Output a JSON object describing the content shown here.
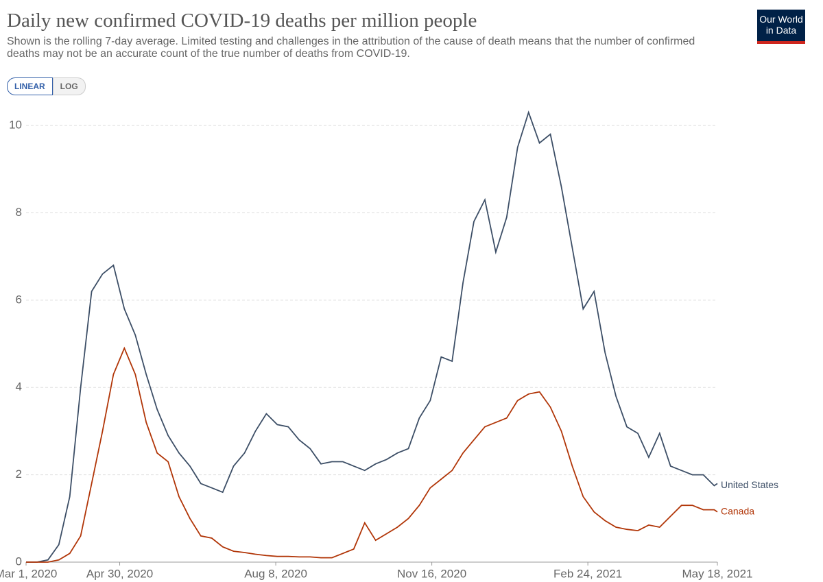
{
  "chart_data": {
    "type": "line",
    "title": "Daily new confirmed COVID-19 deaths per million people",
    "subtitle": "Shown is the rolling 7-day average. Limited testing and challenges in the attribution of the cause of death means that the number of confirmed deaths may not be an accurate count of the true number of deaths from COVID-19.",
    "logo": [
      "Our World",
      "in Data"
    ],
    "scale_buttons": [
      "LINEAR",
      "LOG"
    ],
    "log_scale": false,
    "grid": true,
    "x": [
      "2020-03-01",
      "2020-03-08",
      "2020-03-15",
      "2020-03-22",
      "2020-03-29",
      "2020-04-05",
      "2020-04-12",
      "2020-04-19",
      "2020-04-26",
      "2020-05-03",
      "2020-05-10",
      "2020-05-17",
      "2020-05-24",
      "2020-05-31",
      "2020-06-07",
      "2020-06-14",
      "2020-06-21",
      "2020-06-28",
      "2020-07-05",
      "2020-07-12",
      "2020-07-19",
      "2020-07-26",
      "2020-08-02",
      "2020-08-09",
      "2020-08-16",
      "2020-08-23",
      "2020-08-30",
      "2020-09-06",
      "2020-09-13",
      "2020-09-20",
      "2020-09-27",
      "2020-10-04",
      "2020-10-11",
      "2020-10-18",
      "2020-10-25",
      "2020-11-01",
      "2020-11-08",
      "2020-11-15",
      "2020-11-22",
      "2020-11-29",
      "2020-12-06",
      "2020-12-13",
      "2020-12-20",
      "2020-12-27",
      "2021-01-03",
      "2021-01-10",
      "2021-01-17",
      "2021-01-24",
      "2021-01-31",
      "2021-02-07",
      "2021-02-14",
      "2021-02-21",
      "2021-02-28",
      "2021-03-07",
      "2021-03-14",
      "2021-03-21",
      "2021-03-28",
      "2021-04-04",
      "2021-04-11",
      "2021-04-18",
      "2021-04-25",
      "2021-05-02",
      "2021-05-09",
      "2021-05-16",
      "2021-05-18"
    ],
    "series": [
      {
        "name": "United States",
        "color": "#3c4e66",
        "values": [
          0,
          0,
          0.05,
          0.4,
          1.5,
          4.0,
          6.2,
          6.6,
          6.8,
          5.8,
          5.2,
          4.3,
          3.5,
          2.9,
          2.5,
          2.2,
          1.8,
          1.7,
          1.6,
          2.2,
          2.5,
          3.0,
          3.4,
          3.15,
          3.1,
          2.8,
          2.6,
          2.25,
          2.3,
          2.3,
          2.2,
          2.1,
          2.25,
          2.35,
          2.5,
          2.6,
          3.3,
          3.7,
          4.7,
          4.6,
          6.4,
          7.8,
          8.3,
          7.1,
          7.9,
          9.5,
          10.3,
          9.6,
          9.8,
          8.6,
          7.2,
          5.8,
          6.2,
          4.8,
          3.8,
          3.1,
          2.95,
          2.4,
          2.95,
          2.2,
          2.1,
          2.0,
          2.0,
          1.75,
          1.8
        ]
      },
      {
        "name": "Canada",
        "color": "#b13507",
        "values": [
          0,
          0,
          0,
          0.05,
          0.2,
          0.6,
          1.8,
          3.0,
          4.3,
          4.9,
          4.3,
          3.2,
          2.5,
          2.3,
          1.5,
          1.0,
          0.6,
          0.55,
          0.35,
          0.25,
          0.22,
          0.18,
          0.15,
          0.13,
          0.13,
          0.12,
          0.12,
          0.1,
          0.1,
          0.2,
          0.3,
          0.9,
          0.5,
          0.65,
          0.8,
          1.0,
          1.3,
          1.7,
          1.9,
          2.1,
          2.5,
          2.8,
          3.1,
          3.2,
          3.3,
          3.7,
          3.85,
          3.9,
          3.55,
          3.0,
          2.2,
          1.5,
          1.15,
          0.95,
          0.8,
          0.75,
          0.72,
          0.85,
          0.8,
          1.05,
          1.3,
          1.3,
          1.2,
          1.2,
          1.15
        ]
      }
    ],
    "xlim": [
      "2020-03-01",
      "2021-05-18"
    ],
    "xticks": [
      {
        "value": "2020-03-01",
        "label": "Mar 1, 2020"
      },
      {
        "value": "2020-04-30",
        "label": "Apr 30, 2020"
      },
      {
        "value": "2020-08-08",
        "label": "Aug 8, 2020"
      },
      {
        "value": "2020-11-16",
        "label": "Nov 16, 2020"
      },
      {
        "value": "2021-02-24",
        "label": "Feb 24, 2021"
      },
      {
        "value": "2021-05-18",
        "label": "May 18, 2021"
      }
    ],
    "ylim": [
      0,
      10.3
    ],
    "yticks": [
      0,
      2,
      4,
      6,
      8,
      10
    ]
  }
}
